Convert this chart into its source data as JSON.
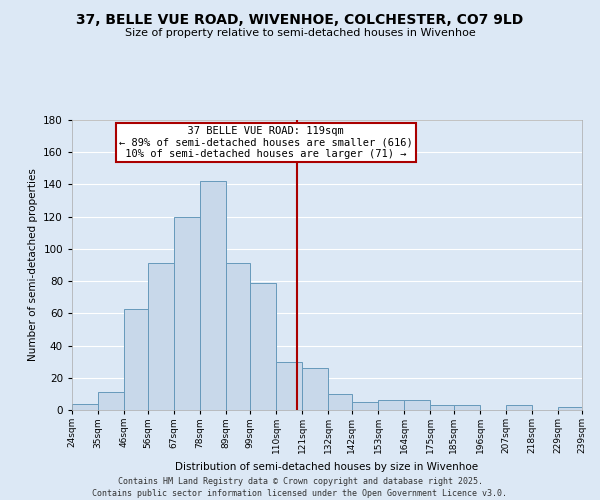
{
  "title": "37, BELLE VUE ROAD, WIVENHOE, COLCHESTER, CO7 9LD",
  "subtitle": "Size of property relative to semi-detached houses in Wivenhoe",
  "xlabel": "Distribution of semi-detached houses by size in Wivenhoe",
  "ylabel": "Number of semi-detached properties",
  "bin_labels": [
    "24sqm",
    "35sqm",
    "46sqm",
    "56sqm",
    "67sqm",
    "78sqm",
    "89sqm",
    "99sqm",
    "110sqm",
    "121sqm",
    "132sqm",
    "142sqm",
    "153sqm",
    "164sqm",
    "175sqm",
    "185sqm",
    "196sqm",
    "207sqm",
    "218sqm",
    "229sqm",
    "239sqm"
  ],
  "bin_edges": [
    24,
    35,
    46,
    56,
    67,
    78,
    89,
    99,
    110,
    121,
    132,
    142,
    153,
    164,
    175,
    185,
    196,
    207,
    218,
    229,
    239
  ],
  "bar_heights": [
    4,
    11,
    63,
    91,
    120,
    142,
    91,
    79,
    30,
    26,
    10,
    5,
    6,
    6,
    3,
    3,
    0,
    3,
    0,
    2
  ],
  "bar_color": "#c8d8ea",
  "bar_edgecolor": "#6699bb",
  "vline_x": 119,
  "vline_color": "#aa0000",
  "annotation_title": "37 BELLE VUE ROAD: 119sqm",
  "annotation_line1": "← 89% of semi-detached houses are smaller (616)",
  "annotation_line2": "10% of semi-detached houses are larger (71) →",
  "annotation_box_edgecolor": "#aa0000",
  "footnote1": "Contains HM Land Registry data © Crown copyright and database right 2025.",
  "footnote2": "Contains public sector information licensed under the Open Government Licence v3.0.",
  "ylim": [
    0,
    180
  ],
  "bg_color": "#dce8f5",
  "plot_bg_color": "#dce8f5",
  "grid_color": "#ffffff"
}
